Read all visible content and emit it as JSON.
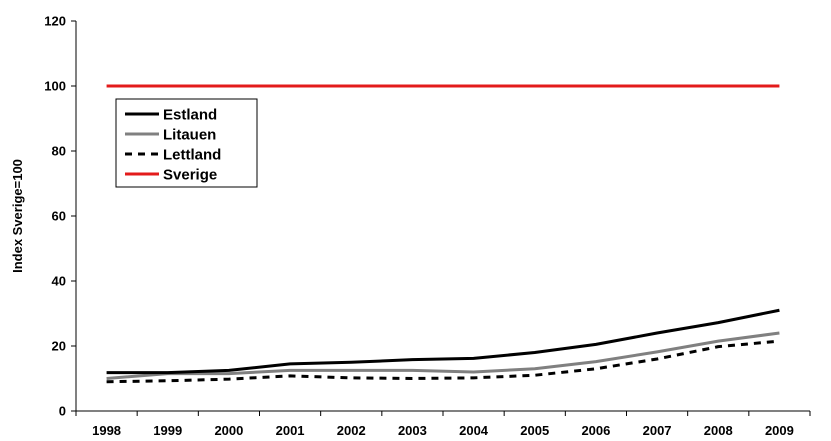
{
  "chart_data": {
    "type": "line",
    "title": "",
    "xlabel": "",
    "ylabel": "Index Sverige=100",
    "x": [
      "1998",
      "1999",
      "2000",
      "2001",
      "2002",
      "2003",
      "2004",
      "2005",
      "2006",
      "2007",
      "2008",
      "2009"
    ],
    "ylim": [
      0,
      120
    ],
    "yticks": [
      0,
      20,
      40,
      60,
      80,
      100,
      120
    ],
    "ytick_labels": [
      "0",
      "20",
      "40",
      "60",
      "80",
      "100",
      "120"
    ],
    "grid": false,
    "legend_position": "top-left",
    "series": [
      {
        "name": "Estland",
        "color": "#000000",
        "style": "solid",
        "values": [
          11.8,
          11.8,
          12.5,
          14.5,
          15.0,
          15.8,
          16.2,
          18.0,
          20.5,
          24.0,
          27.2,
          31.0
        ]
      },
      {
        "name": "Litauen",
        "color": "#808080",
        "style": "solid",
        "values": [
          10.0,
          11.5,
          11.5,
          12.5,
          12.5,
          12.5,
          12.0,
          13.0,
          15.2,
          18.2,
          21.5,
          24.0
        ]
      },
      {
        "name": "Lettland",
        "color": "#000000",
        "style": "dashed",
        "values": [
          9.0,
          9.3,
          9.8,
          10.8,
          10.2,
          10.0,
          10.2,
          11.0,
          13.0,
          16.0,
          19.8,
          21.5
        ]
      },
      {
        "name": "Sverige",
        "color": "#e31b1b",
        "style": "solid",
        "values": [
          100,
          100,
          100,
          100,
          100,
          100,
          100,
          100,
          100,
          100,
          100,
          100
        ]
      }
    ]
  }
}
